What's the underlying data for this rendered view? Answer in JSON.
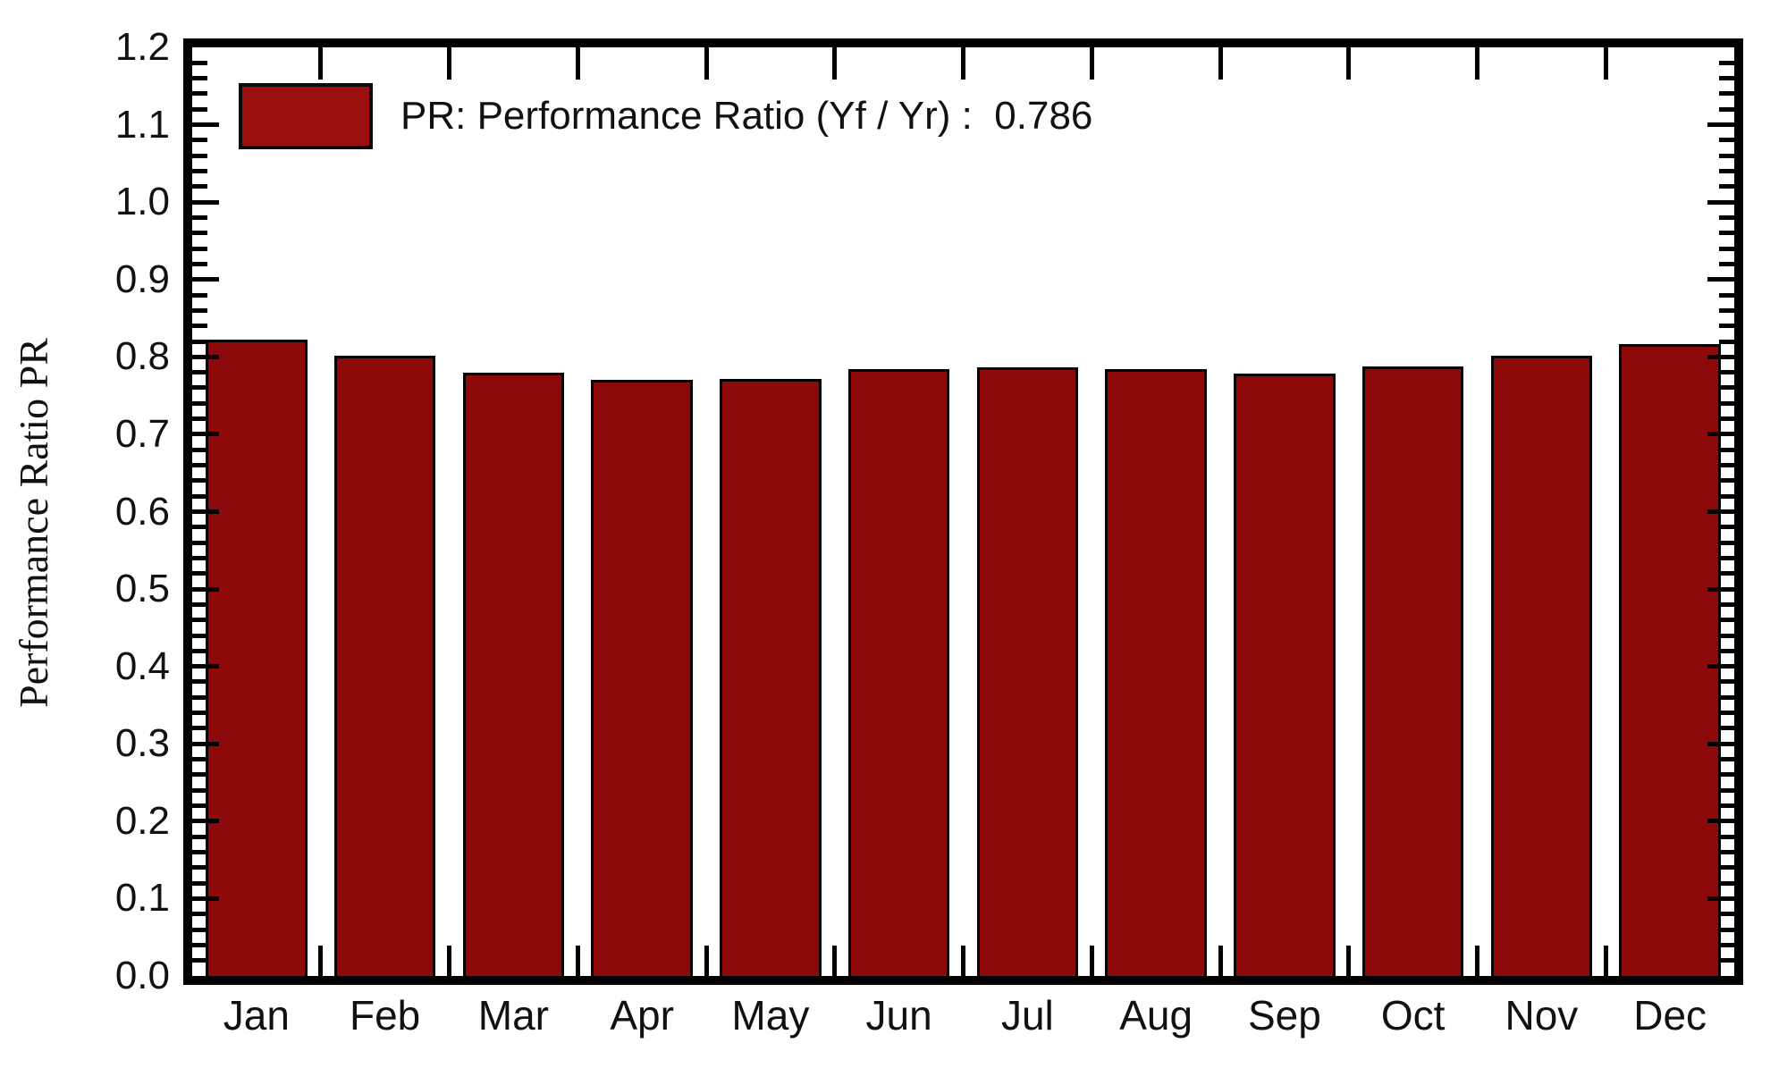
{
  "page": {
    "background": "#ffffff"
  },
  "y_axis": {
    "title": "Performance Ratio PR"
  },
  "legend": {
    "label": "PR: Performance Ratio (Yf / Yr) :  0.786",
    "swatch_color": "#9b0f0f"
  },
  "chart_data": {
    "type": "bar",
    "title": "",
    "xlabel": "",
    "ylabel": "Performance Ratio PR",
    "categories": [
      "Jan",
      "Feb",
      "Mar",
      "Apr",
      "May",
      "Jun",
      "Jul",
      "Aug",
      "Sep",
      "Oct",
      "Nov",
      "Dec"
    ],
    "values": [
      0.822,
      0.801,
      0.78,
      0.77,
      0.771,
      0.784,
      0.787,
      0.784,
      0.779,
      0.788,
      0.801,
      0.817
    ],
    "series_name": "PR",
    "legend_label": "PR: Performance Ratio (Yf / Yr) :  0.786",
    "annotation_value": 0.786,
    "ylim": [
      0.0,
      1.2
    ],
    "y_major_step": 0.1,
    "y_minor_step": 0.02,
    "y_tick_decimals": 1,
    "grid": false,
    "legend_position": "top-left",
    "bar_color": "#8e0909",
    "bar_border_color": "#000000",
    "axis_color": "#000000"
  }
}
